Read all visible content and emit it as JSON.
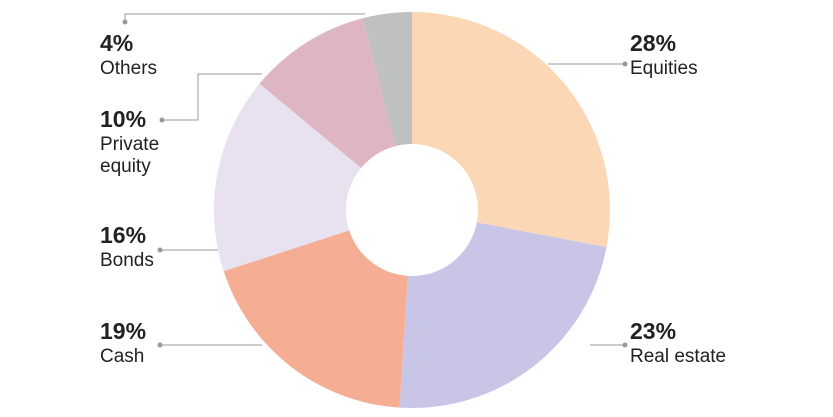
{
  "chart_data": {
    "type": "pie",
    "donut": true,
    "categories": [
      "Equities",
      "Real estate",
      "Cash",
      "Bonds",
      "Private equity",
      "Others"
    ],
    "values": [
      28,
      23,
      19,
      16,
      10,
      4
    ],
    "value_labels": [
      "28%",
      "23%",
      "19%",
      "16%",
      "10%",
      "4%"
    ],
    "colors": [
      "#fbd7b5",
      "#c9c5e6",
      "#f5ae94",
      "#e8e1f0",
      "#ddb6c2",
      "#bfc0c2"
    ]
  }
}
